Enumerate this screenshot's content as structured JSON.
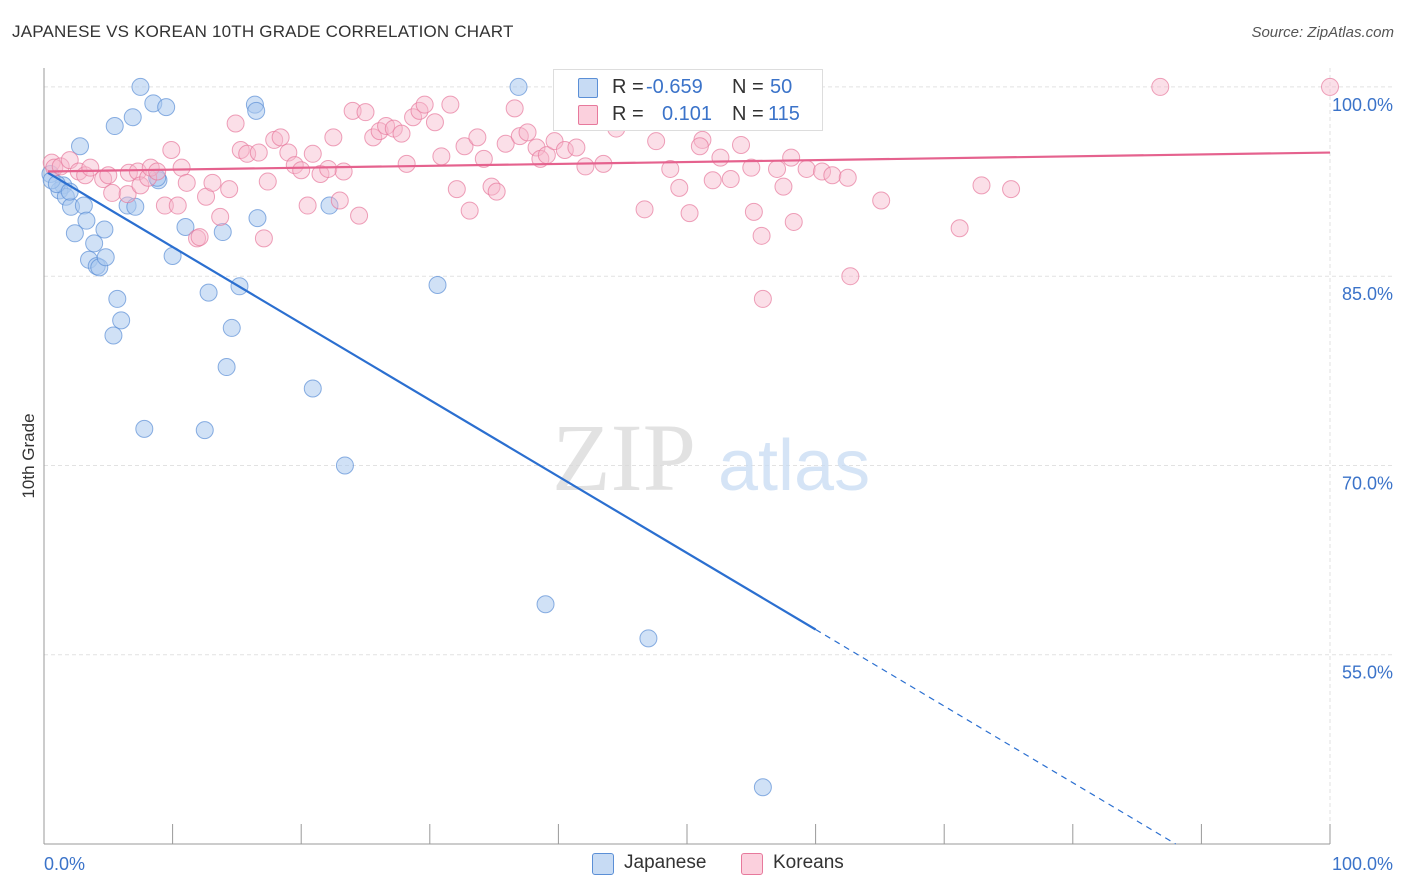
{
  "header": {
    "title": "JAPANESE VS KOREAN 10TH GRADE CORRELATION CHART",
    "source": "Source: ZipAtlas.com"
  },
  "watermark": {
    "zip": "ZIP",
    "atlas": "atlas"
  },
  "legend": {
    "rows": [
      {
        "r_label": "R =",
        "r_value": "-0.659",
        "n_label": "N =",
        "n_value": "50",
        "color": "#aac8ee",
        "stroke": "#5b8fd6"
      },
      {
        "r_label": "R =",
        "r_value": "0.101",
        "n_label": "N =",
        "n_value": "115",
        "color": "#f7b8cb",
        "stroke": "#e7799c"
      }
    ]
  },
  "bottom_legend": {
    "japanese": "Japanese",
    "koreans": "Koreans"
  },
  "chart_data": {
    "type": "scatter",
    "title": "JAPANESE VS KOREAN 10TH GRADE CORRELATION CHART",
    "xlabel": "",
    "ylabel": "10th Grade",
    "xlim": [
      0,
      100
    ],
    "ylim": [
      40,
      101.5
    ],
    "x_tick_labels": [
      {
        "value": 0,
        "label": "0.0%"
      },
      {
        "value": 100,
        "label": "100.0%"
      }
    ],
    "y_tick_labels": [
      {
        "value": 100,
        "label": "100.0%"
      },
      {
        "value": 85,
        "label": "85.0%"
      },
      {
        "value": 70,
        "label": "70.0%"
      },
      {
        "value": 55,
        "label": "55.0%"
      }
    ],
    "grid": true,
    "legend_position": "top-center",
    "series": [
      {
        "name": "Japanese",
        "color": "#aac8ee",
        "stroke": "#5b8fd6",
        "line_color": "#2b6fd0",
        "trend": {
          "x0": 0.3,
          "y0": 93.2,
          "x1": 60,
          "y1": 57.0,
          "dash_to_x": 88,
          "dash_to_y": 40
        },
        "points": [
          [
            7.5,
            100
          ],
          [
            36.9,
            100
          ],
          [
            8.5,
            98.7
          ],
          [
            9.5,
            98.4
          ],
          [
            16.4,
            98.6
          ],
          [
            16.5,
            98.1
          ],
          [
            6.9,
            97.6
          ],
          [
            5.5,
            96.9
          ],
          [
            2.8,
            95.3
          ],
          [
            0.5,
            93.1
          ],
          [
            1.5,
            92.2
          ],
          [
            1.2,
            91.8
          ],
          [
            1.7,
            91.3
          ],
          [
            2.1,
            90.5
          ],
          [
            3.1,
            90.6
          ],
          [
            3.3,
            89.4
          ],
          [
            6.5,
            90.6
          ],
          [
            7.1,
            90.5
          ],
          [
            8.9,
            92.6
          ],
          [
            8.8,
            92.8
          ],
          [
            16.6,
            89.6
          ],
          [
            22.2,
            90.6
          ],
          [
            11.0,
            88.9
          ],
          [
            13.9,
            88.5
          ],
          [
            2.4,
            88.4
          ],
          [
            4.7,
            88.7
          ],
          [
            3.9,
            87.6
          ],
          [
            3.5,
            86.3
          ],
          [
            4.1,
            85.8
          ],
          [
            4.3,
            85.7
          ],
          [
            4.8,
            86.5
          ],
          [
            10.0,
            86.6
          ],
          [
            5.7,
            83.2
          ],
          [
            12.8,
            83.7
          ],
          [
            15.2,
            84.2
          ],
          [
            30.6,
            84.3
          ],
          [
            6.0,
            81.5
          ],
          [
            5.4,
            80.3
          ],
          [
            14.6,
            80.9
          ],
          [
            14.2,
            77.8
          ],
          [
            20.9,
            76.1
          ],
          [
            7.8,
            72.9
          ],
          [
            12.5,
            72.8
          ],
          [
            23.4,
            70.0
          ],
          [
            39.0,
            59.0
          ],
          [
            47.0,
            56.3
          ],
          [
            55.9,
            44.5
          ],
          [
            0.6,
            92.6
          ],
          [
            1.0,
            92.3
          ],
          [
            2.0,
            91.7
          ]
        ]
      },
      {
        "name": "Koreans",
        "color": "#f7b8cb",
        "stroke": "#e7799c",
        "line_color": "#e5628e",
        "trend": {
          "x0": 0.3,
          "y0": 93.3,
          "x1": 100,
          "y1": 94.8
        },
        "points": [
          [
            0.6,
            94.0
          ],
          [
            0.8,
            93.6
          ],
          [
            1.3,
            93.7
          ],
          [
            2.0,
            94.2
          ],
          [
            2.7,
            93.3
          ],
          [
            3.2,
            93.0
          ],
          [
            3.6,
            93.6
          ],
          [
            4.6,
            92.7
          ],
          [
            5.0,
            93.0
          ],
          [
            5.3,
            91.6
          ],
          [
            6.5,
            91.5
          ],
          [
            6.6,
            93.2
          ],
          [
            7.3,
            93.3
          ],
          [
            7.5,
            92.2
          ],
          [
            8.1,
            92.8
          ],
          [
            8.3,
            93.6
          ],
          [
            8.8,
            93.3
          ],
          [
            9.4,
            90.6
          ],
          [
            9.9,
            95.0
          ],
          [
            10.4,
            90.6
          ],
          [
            10.7,
            93.6
          ],
          [
            11.1,
            92.4
          ],
          [
            11.9,
            88.0
          ],
          [
            12.1,
            88.1
          ],
          [
            12.6,
            91.3
          ],
          [
            13.1,
            92.4
          ],
          [
            13.7,
            89.7
          ],
          [
            14.4,
            91.9
          ],
          [
            14.9,
            97.1
          ],
          [
            15.3,
            95.0
          ],
          [
            15.8,
            94.7
          ],
          [
            16.7,
            94.8
          ],
          [
            17.1,
            88.0
          ],
          [
            17.4,
            92.5
          ],
          [
            17.9,
            95.8
          ],
          [
            18.4,
            96.0
          ],
          [
            19.0,
            94.8
          ],
          [
            19.5,
            93.8
          ],
          [
            20.0,
            93.4
          ],
          [
            20.5,
            90.6
          ],
          [
            20.9,
            94.7
          ],
          [
            21.5,
            93.1
          ],
          [
            22.1,
            93.5
          ],
          [
            22.5,
            96.0
          ],
          [
            23.0,
            91.0
          ],
          [
            23.3,
            93.3
          ],
          [
            24.0,
            98.1
          ],
          [
            24.5,
            89.8
          ],
          [
            25.0,
            98.0
          ],
          [
            25.6,
            96.0
          ],
          [
            26.1,
            96.5
          ],
          [
            26.6,
            96.9
          ],
          [
            27.2,
            96.7
          ],
          [
            27.8,
            96.3
          ],
          [
            28.2,
            93.9
          ],
          [
            28.7,
            97.6
          ],
          [
            29.2,
            98.1
          ],
          [
            29.6,
            98.6
          ],
          [
            30.4,
            97.2
          ],
          [
            30.9,
            94.5
          ],
          [
            31.6,
            98.6
          ],
          [
            32.1,
            91.9
          ],
          [
            32.7,
            95.3
          ],
          [
            33.1,
            90.2
          ],
          [
            33.7,
            96.0
          ],
          [
            34.2,
            94.3
          ],
          [
            34.8,
            92.1
          ],
          [
            35.2,
            91.7
          ],
          [
            35.9,
            95.5
          ],
          [
            36.6,
            98.3
          ],
          [
            37.0,
            96.1
          ],
          [
            37.6,
            96.4
          ],
          [
            38.3,
            95.2
          ],
          [
            38.6,
            94.3
          ],
          [
            39.1,
            94.6
          ],
          [
            39.7,
            95.7
          ],
          [
            40.5,
            95.0
          ],
          [
            40.9,
            97.3
          ],
          [
            41.4,
            95.2
          ],
          [
            42.1,
            93.7
          ],
          [
            43.5,
            93.9
          ],
          [
            44.5,
            96.7
          ],
          [
            45.5,
            100
          ],
          [
            45.8,
            97.4
          ],
          [
            46.7,
            90.3
          ],
          [
            47.6,
            95.7
          ],
          [
            48.4,
            97.7
          ],
          [
            48.7,
            93.5
          ],
          [
            49.4,
            92.0
          ],
          [
            50.2,
            90.0
          ],
          [
            51.2,
            95.8
          ],
          [
            52.0,
            92.6
          ],
          [
            52.6,
            94.4
          ],
          [
            53.4,
            92.7
          ],
          [
            54.2,
            95.4
          ],
          [
            55.0,
            93.6
          ],
          [
            55.2,
            90.1
          ],
          [
            55.8,
            88.2
          ],
          [
            57.5,
            92.1
          ],
          [
            58.1,
            94.4
          ],
          [
            58.3,
            89.3
          ],
          [
            59.3,
            93.5
          ],
          [
            60.5,
            93.3
          ],
          [
            61.3,
            93.0
          ],
          [
            62.5,
            92.8
          ],
          [
            62.7,
            85.0
          ],
          [
            55.9,
            83.2
          ],
          [
            65.1,
            91.0
          ],
          [
            71.2,
            88.8
          ],
          [
            72.9,
            92.2
          ],
          [
            75.2,
            91.9
          ],
          [
            86.8,
            100
          ],
          [
            100.0,
            100
          ],
          [
            51.0,
            95.3
          ],
          [
            57.0,
            93.5
          ]
        ]
      }
    ]
  }
}
